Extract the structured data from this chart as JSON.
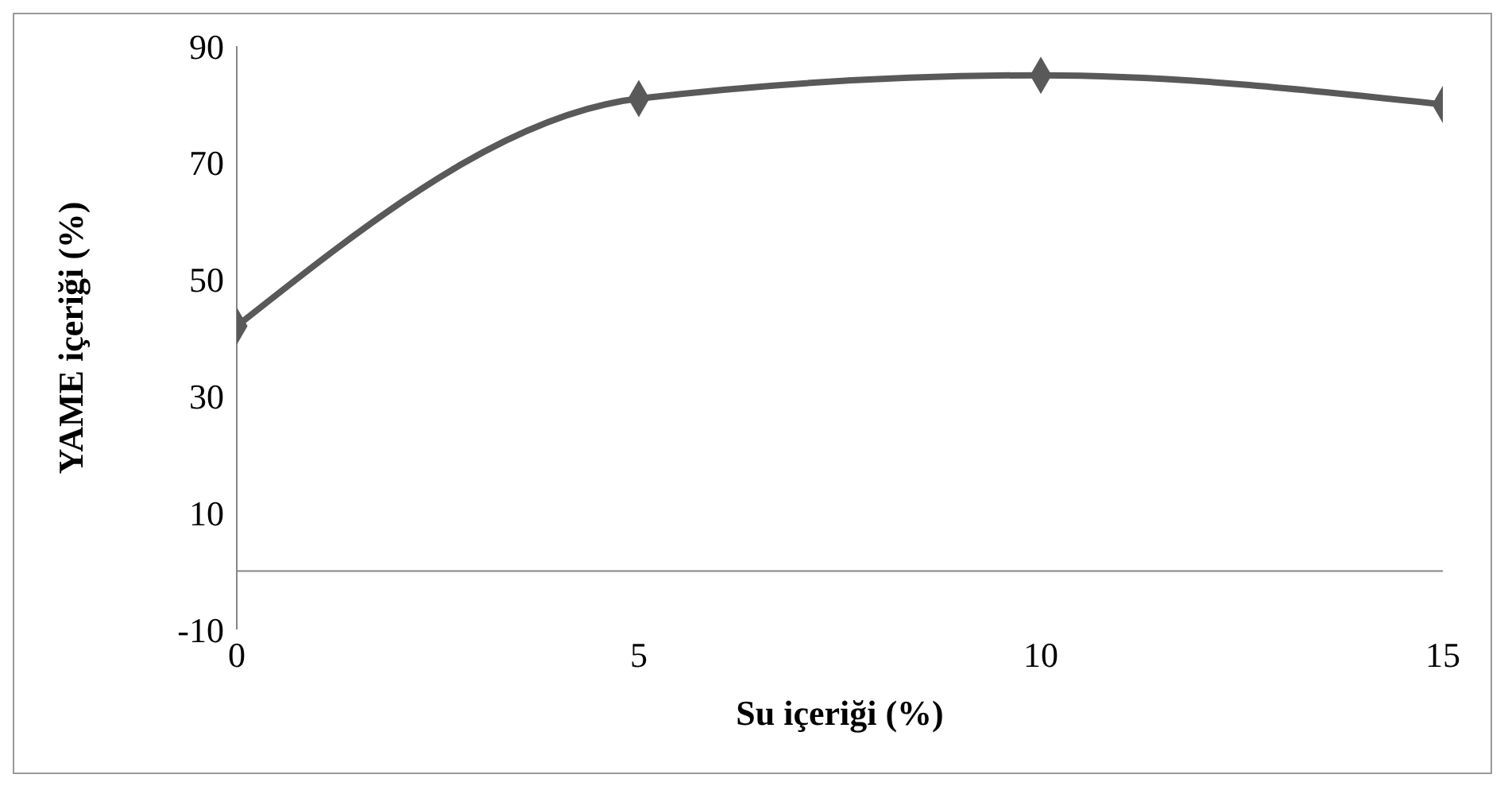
{
  "chart_data": {
    "type": "line",
    "xlabel": "Su içeriği (%)",
    "ylabel": "YAME içeriği (%)",
    "x": [
      0,
      5,
      10,
      15
    ],
    "series": [
      {
        "color": "#595959",
        "values": [
          42,
          81,
          85,
          80
        ]
      }
    ],
    "xlim": [
      0,
      15
    ],
    "xticks": [
      0,
      5,
      10,
      15
    ],
    "ylim": [
      -10,
      90
    ],
    "yticks": [
      -10,
      10,
      30,
      50,
      70,
      90
    ],
    "grid": false,
    "legend": false,
    "marker": "diamond",
    "line_style": "solid"
  }
}
